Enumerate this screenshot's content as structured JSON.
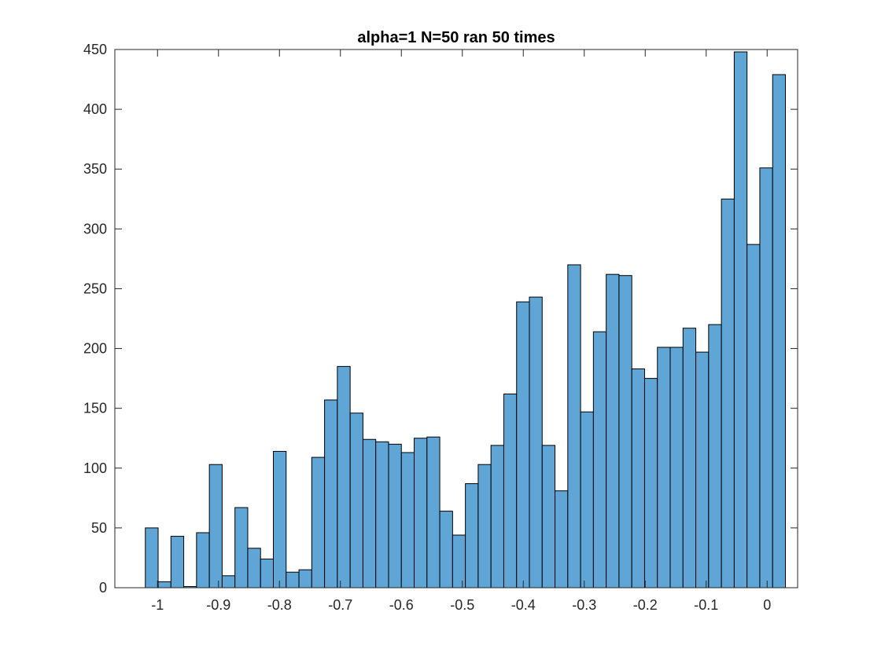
{
  "chart_data": {
    "type": "bar",
    "title": "alpha=1 N=50 ran 50 times",
    "xlabel": "",
    "ylabel": "",
    "xlim": [
      -1.07,
      0.05
    ],
    "ylim": [
      0,
      450
    ],
    "bin_start": -1.02,
    "bin_width": 0.021,
    "values": [
      50,
      5,
      43,
      1,
      46,
      103,
      10,
      67,
      33,
      24,
      114,
      13,
      15,
      109,
      157,
      185,
      146,
      124,
      122,
      120,
      113,
      125,
      126,
      64,
      44,
      87,
      103,
      119,
      162,
      239,
      243,
      119,
      81,
      270,
      147,
      214,
      262,
      261,
      183,
      175,
      201,
      201,
      217,
      197,
      220,
      325,
      448,
      287,
      351,
      429
    ],
    "xticks": [
      -1,
      -0.9,
      -0.8,
      -0.7,
      -0.6,
      -0.5,
      -0.4,
      -0.3,
      -0.2,
      -0.1,
      0
    ],
    "xtick_labels": [
      "-1",
      "-0.9",
      "-0.8",
      "-0.7",
      "-0.6",
      "-0.5",
      "-0.4",
      "-0.3",
      "-0.2",
      "-0.1",
      "0"
    ],
    "yticks": [
      0,
      50,
      100,
      150,
      200,
      250,
      300,
      350,
      400,
      450
    ],
    "ytick_labels": [
      "0",
      "50",
      "100",
      "150",
      "200",
      "250",
      "300",
      "350",
      "400",
      "450"
    ],
    "grid": false,
    "legend": "none",
    "colors": {
      "bar_fill": "#5FA5D6",
      "bar_edge": "#000000",
      "axis": "#262626",
      "background": "#ffffff"
    }
  }
}
